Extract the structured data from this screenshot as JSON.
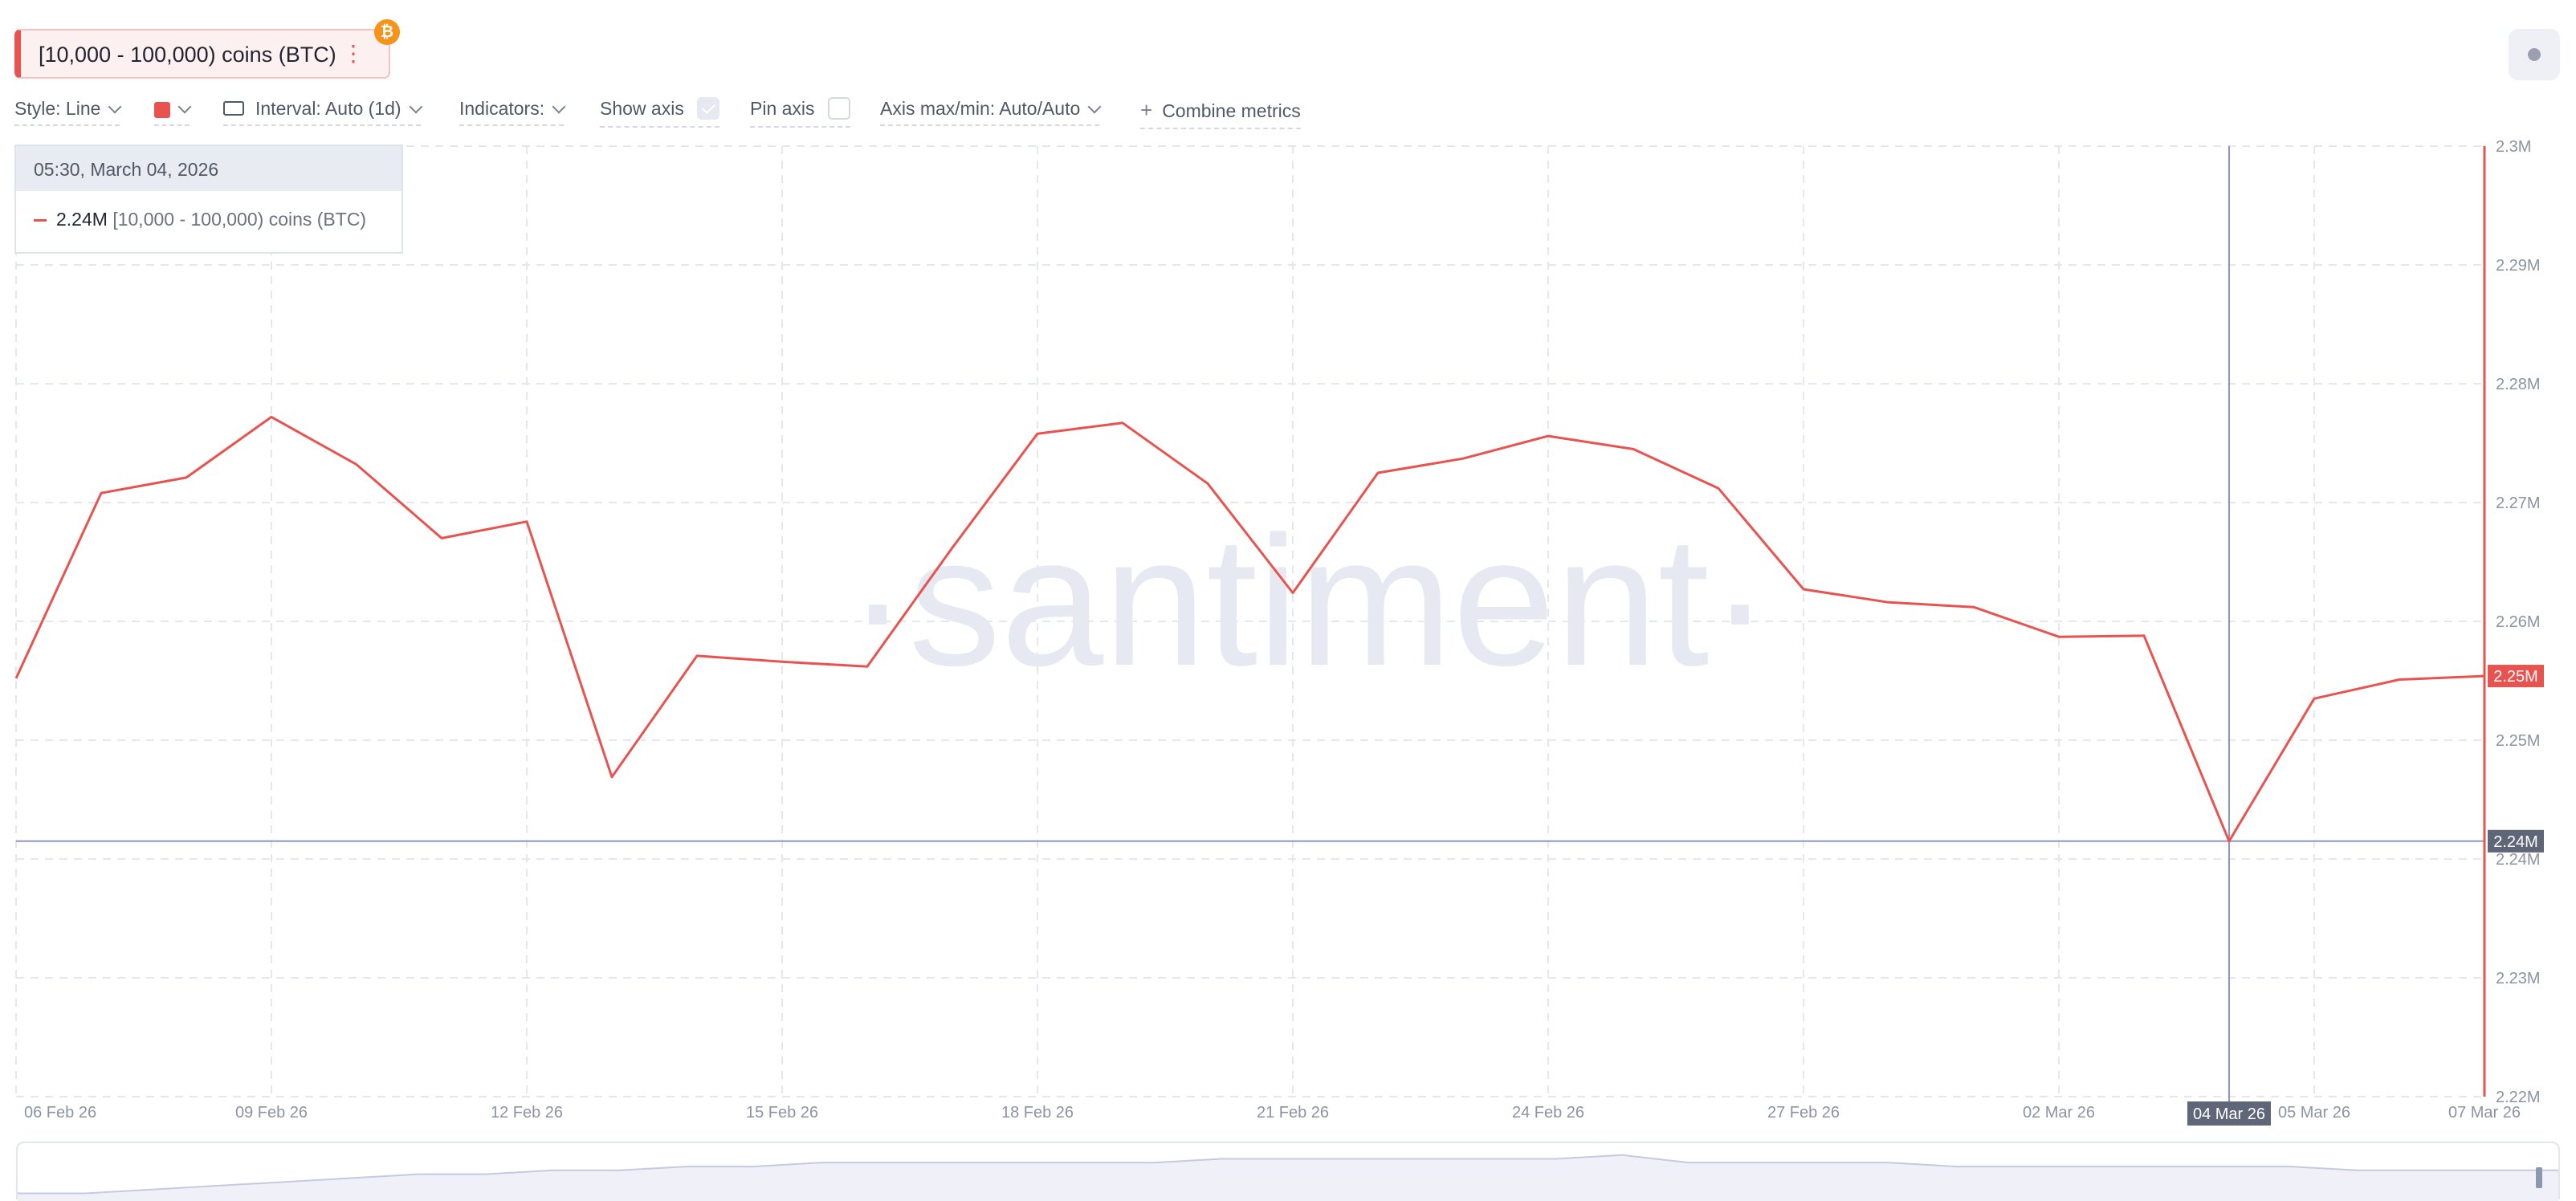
{
  "metric": {
    "label": "[10,000 - 100,000) coins (BTC)",
    "menu_icon": "⋮",
    "asset_badge": "₿",
    "color": "#e8534f"
  },
  "toolbar": {
    "style_label": "Style: Line",
    "interval_label": "Interval: Auto (1d)",
    "indicators_label": "Indicators:",
    "show_axis_label": "Show axis",
    "show_axis_checked": true,
    "pin_axis_label": "Pin axis",
    "pin_axis_checked": false,
    "axis_maxmin_label": "Axis max/min: Auto/Auto",
    "combine_label": "Combine metrics"
  },
  "tooltip": {
    "date": "05:30, March 04, 2026",
    "value": "2.24M",
    "series": "[10,000 - 100,000) coins (BTC)"
  },
  "watermark": "·santiment·",
  "chart_data": {
    "type": "line",
    "ylim": [
      2.22,
      2.3
    ],
    "y_ticks": [
      "2.3M",
      "2.29M",
      "2.28M",
      "2.27M",
      "2.26M",
      "2.25M",
      "2.24M",
      "2.23M",
      "2.22M"
    ],
    "x_ticks": [
      "06 Feb 26",
      "09 Feb 26",
      "12 Feb 26",
      "15 Feb 26",
      "18 Feb 26",
      "21 Feb 26",
      "24 Feb 26",
      "27 Feb 26",
      "02 Mar 26",
      "05 Mar 26",
      "07 Mar 26"
    ],
    "crosshair_x_label": "04 Mar 26",
    "crosshair_y_label": "2.24M",
    "last_value_label": "2.25M",
    "series": [
      {
        "name": "[10,000 - 100,000) coins (BTC)",
        "color": "#e8534f",
        "x": [
          "06 Feb",
          "07 Feb",
          "08 Feb",
          "09 Feb",
          "10 Feb",
          "11 Feb",
          "12 Feb",
          "13 Feb",
          "14 Feb",
          "15 Feb",
          "16 Feb",
          "17 Feb",
          "18 Feb",
          "19 Feb",
          "20 Feb",
          "21 Feb",
          "22 Feb",
          "23 Feb",
          "24 Feb",
          "25 Feb",
          "26 Feb",
          "27 Feb",
          "28 Feb",
          "01 Mar",
          "02 Mar",
          "03 Mar",
          "04 Mar",
          "05 Mar",
          "06 Mar",
          "07 Mar"
        ],
        "values": [
          2.2552,
          2.2708,
          2.2721,
          2.2772,
          2.2732,
          2.267,
          2.2684,
          2.2469,
          2.2571,
          2.2566,
          2.2562,
          2.2662,
          2.2758,
          2.2767,
          2.2716,
          2.2624,
          2.2725,
          2.2737,
          2.2756,
          2.2745,
          2.2712,
          2.2627,
          2.2616,
          2.2612,
          2.2587,
          2.2588,
          2.2415,
          2.2535,
          2.2551,
          2.2554
        ]
      }
    ],
    "grid": true
  },
  "navigator": {
    "values": [
      2.2,
      2.2,
      2.21,
      2.22,
      2.23,
      2.24,
      2.25,
      2.25,
      2.26,
      2.26,
      2.27,
      2.27,
      2.28,
      2.28,
      2.28,
      2.28,
      2.28,
      2.28,
      2.29,
      2.29,
      2.29,
      2.29,
      2.29,
      2.29,
      2.3,
      2.28,
      2.28,
      2.28,
      2.28,
      2.27,
      2.27,
      2.27,
      2.27,
      2.27,
      2.27,
      2.26,
      2.26,
      2.26,
      2.26
    ]
  }
}
